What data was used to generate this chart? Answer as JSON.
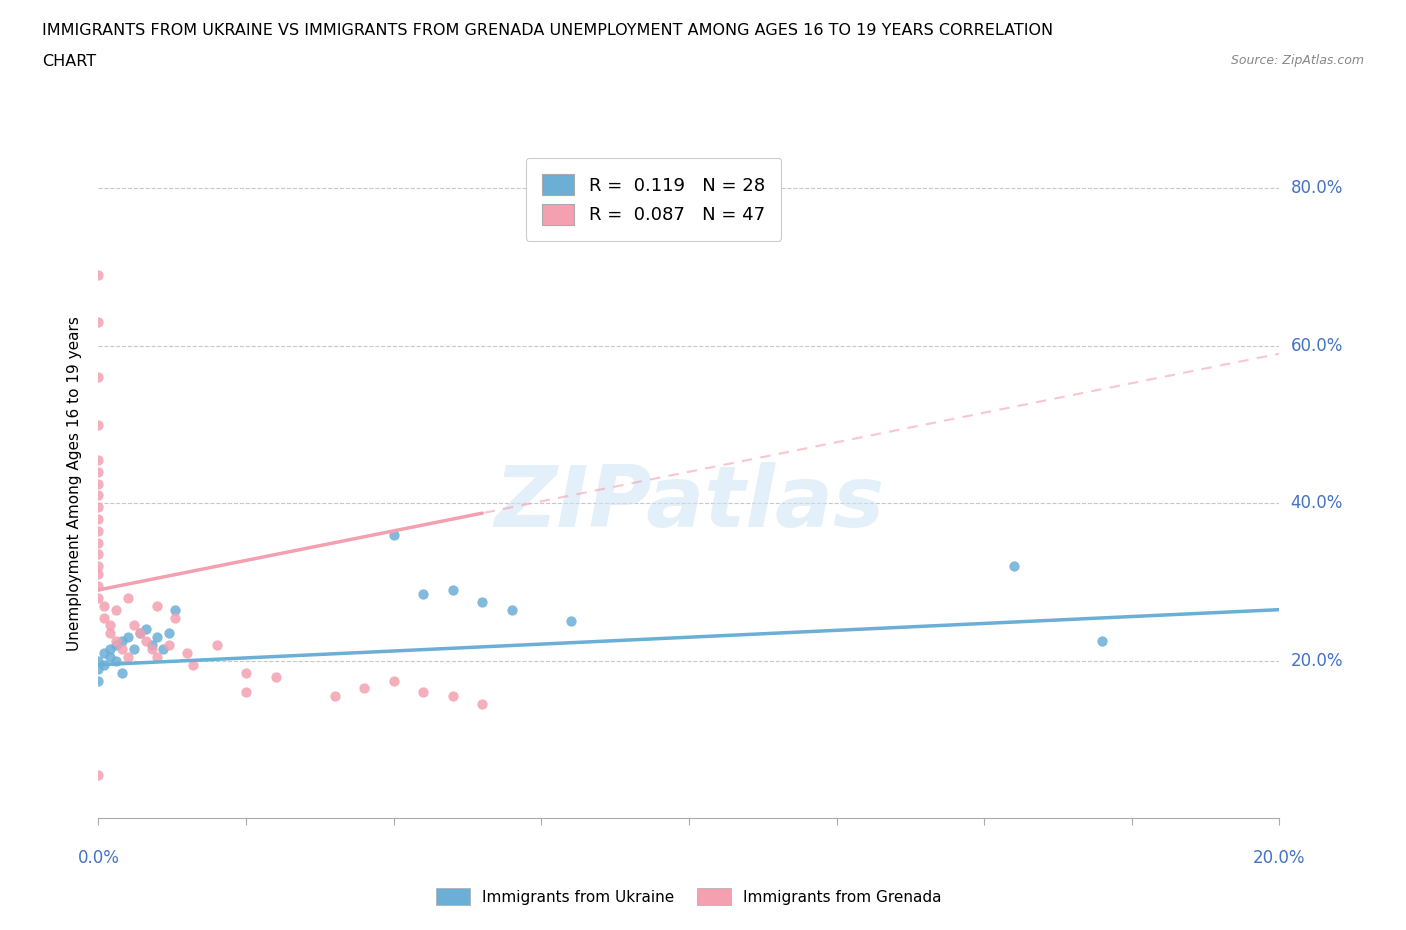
{
  "title_line1": "IMMIGRANTS FROM UKRAINE VS IMMIGRANTS FROM GRENADA UNEMPLOYMENT AMONG AGES 16 TO 19 YEARS CORRELATION",
  "title_line2": "CHART",
  "source": "Source: ZipAtlas.com",
  "ylabel": "Unemployment Among Ages 16 to 19 years",
  "xlim": [
    0.0,
    0.2
  ],
  "ylim": [
    0.0,
    0.85
  ],
  "yticks": [
    0.2,
    0.4,
    0.6,
    0.8
  ],
  "ytick_labels": [
    "20.0%",
    "40.0%",
    "60.0%",
    "80.0%"
  ],
  "xticks": [
    0.0,
    0.025,
    0.05,
    0.075,
    0.1,
    0.125,
    0.15,
    0.175,
    0.2
  ],
  "ukraine_color": "#6baed6",
  "grenada_color": "#f4a0b0",
  "ukraine_R": "0.119",
  "ukraine_N": "28",
  "grenada_R": "0.087",
  "grenada_N": "47",
  "watermark": "ZIPatlas",
  "ukraine_points": [
    [
      0.0,
      0.175
    ],
    [
      0.0,
      0.19
    ],
    [
      0.0,
      0.2
    ],
    [
      0.001,
      0.21
    ],
    [
      0.001,
      0.195
    ],
    [
      0.002,
      0.215
    ],
    [
      0.002,
      0.205
    ],
    [
      0.003,
      0.22
    ],
    [
      0.003,
      0.2
    ],
    [
      0.004,
      0.225
    ],
    [
      0.004,
      0.185
    ],
    [
      0.005,
      0.23
    ],
    [
      0.006,
      0.215
    ],
    [
      0.007,
      0.235
    ],
    [
      0.008,
      0.24
    ],
    [
      0.009,
      0.22
    ],
    [
      0.01,
      0.23
    ],
    [
      0.011,
      0.215
    ],
    [
      0.012,
      0.235
    ],
    [
      0.013,
      0.265
    ],
    [
      0.05,
      0.36
    ],
    [
      0.055,
      0.285
    ],
    [
      0.06,
      0.29
    ],
    [
      0.065,
      0.275
    ],
    [
      0.07,
      0.265
    ],
    [
      0.08,
      0.25
    ],
    [
      0.155,
      0.32
    ],
    [
      0.17,
      0.225
    ]
  ],
  "grenada_points": [
    [
      0.0,
      0.69
    ],
    [
      0.0,
      0.63
    ],
    [
      0.0,
      0.56
    ],
    [
      0.0,
      0.5
    ],
    [
      0.0,
      0.455
    ],
    [
      0.0,
      0.44
    ],
    [
      0.0,
      0.425
    ],
    [
      0.0,
      0.41
    ],
    [
      0.0,
      0.395
    ],
    [
      0.0,
      0.38
    ],
    [
      0.0,
      0.365
    ],
    [
      0.0,
      0.35
    ],
    [
      0.0,
      0.335
    ],
    [
      0.0,
      0.32
    ],
    [
      0.0,
      0.31
    ],
    [
      0.0,
      0.295
    ],
    [
      0.0,
      0.28
    ],
    [
      0.001,
      0.27
    ],
    [
      0.001,
      0.255
    ],
    [
      0.002,
      0.245
    ],
    [
      0.002,
      0.235
    ],
    [
      0.003,
      0.225
    ],
    [
      0.003,
      0.265
    ],
    [
      0.004,
      0.215
    ],
    [
      0.005,
      0.28
    ],
    [
      0.005,
      0.205
    ],
    [
      0.006,
      0.245
    ],
    [
      0.007,
      0.235
    ],
    [
      0.008,
      0.225
    ],
    [
      0.009,
      0.215
    ],
    [
      0.01,
      0.27
    ],
    [
      0.01,
      0.205
    ],
    [
      0.012,
      0.22
    ],
    [
      0.013,
      0.255
    ],
    [
      0.015,
      0.21
    ],
    [
      0.016,
      0.195
    ],
    [
      0.02,
      0.22
    ],
    [
      0.025,
      0.185
    ],
    [
      0.025,
      0.16
    ],
    [
      0.03,
      0.18
    ],
    [
      0.04,
      0.155
    ],
    [
      0.045,
      0.165
    ],
    [
      0.05,
      0.175
    ],
    [
      0.055,
      0.16
    ],
    [
      0.06,
      0.155
    ],
    [
      0.065,
      0.145
    ],
    [
      0.0,
      0.055
    ]
  ],
  "axis_color": "#4472c4",
  "grid_color": "#c8c8c8",
  "background_color": "#ffffff",
  "ukraine_line": [
    0.0,
    0.195,
    0.2,
    0.265
  ],
  "grenada_line": [
    0.0,
    0.29,
    0.2,
    0.59
  ]
}
